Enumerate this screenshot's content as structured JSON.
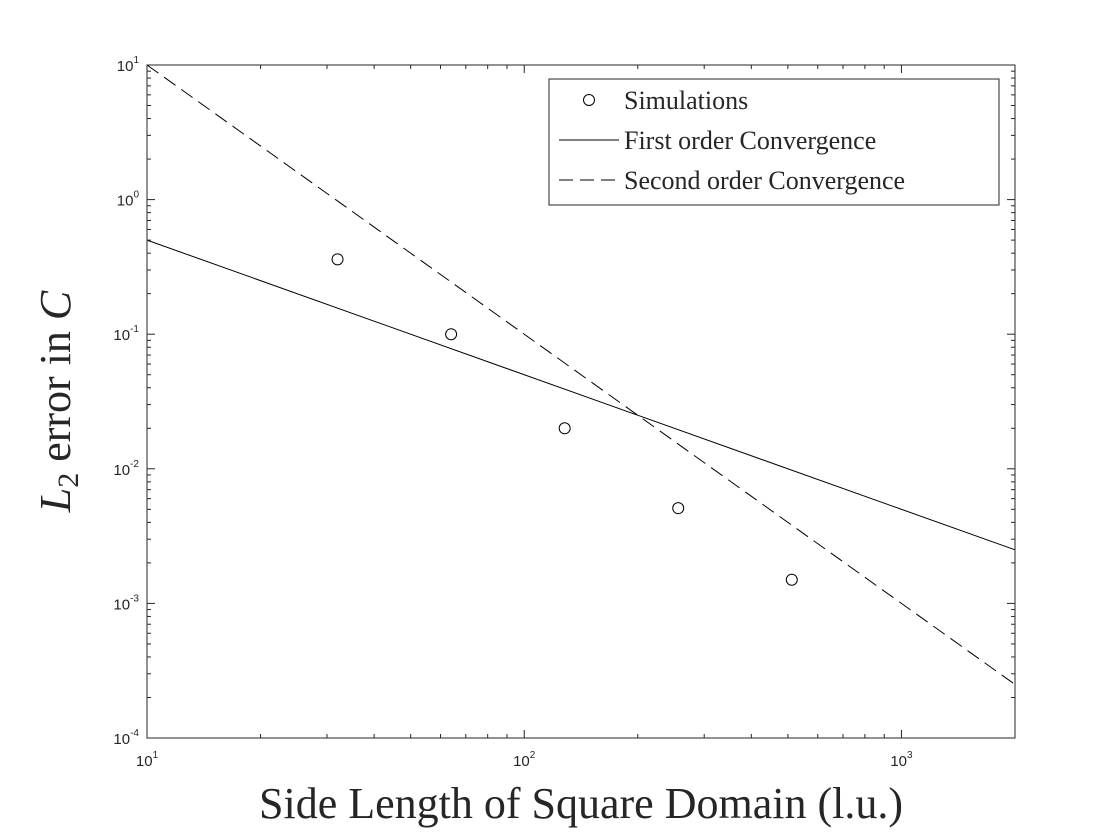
{
  "chart_data": {
    "type": "scatter",
    "xscale": "log",
    "yscale": "log",
    "xlim": [
      10,
      2000
    ],
    "ylim": [
      0.0001,
      10
    ],
    "x_ticks": [
      {
        "value": 10,
        "base": "10",
        "exp": "1"
      },
      {
        "value": 100,
        "base": "10",
        "exp": "2"
      },
      {
        "value": 1000,
        "base": "10",
        "exp": "3"
      }
    ],
    "y_ticks": [
      {
        "value": 10,
        "base": "10",
        "exp": "1"
      },
      {
        "value": 1,
        "base": "10",
        "exp": "0"
      },
      {
        "value": 0.1,
        "base": "10",
        "exp": "-1"
      },
      {
        "value": 0.01,
        "base": "10",
        "exp": "-2"
      },
      {
        "value": 0.001,
        "base": "10",
        "exp": "-3"
      },
      {
        "value": 0.0001,
        "base": "10",
        "exp": "-4"
      }
    ],
    "xlabel": "Side Length of Square Domain (l.u.)",
    "ylabel": {
      "prefix": "L",
      "subscript": "2",
      "middle": " error in ",
      "suffix": "C"
    },
    "grid": false,
    "legend_position": "top-right",
    "series": [
      {
        "name": "Simulations",
        "kind": "markers",
        "marker": "open-circle",
        "x": [
          32,
          64,
          128,
          256,
          512
        ],
        "y": [
          0.36,
          0.1,
          0.02,
          0.0051,
          0.0015
        ]
      },
      {
        "name": "First order Convergence",
        "kind": "line",
        "style": "solid",
        "x": [
          10,
          2000
        ],
        "y": [
          0.5,
          0.0025
        ]
      },
      {
        "name": "Second order Convergence",
        "kind": "line",
        "style": "dashed",
        "x": [
          10,
          2000
        ],
        "y": [
          10,
          0.00025
        ]
      }
    ]
  }
}
